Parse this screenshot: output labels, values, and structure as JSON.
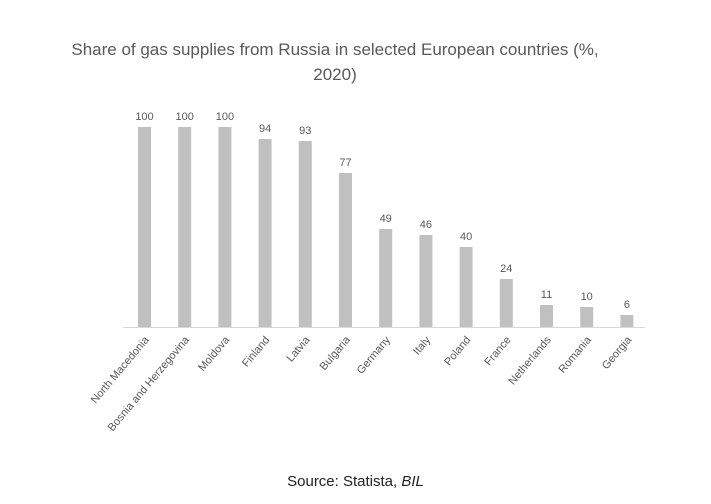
{
  "chart_data": {
    "type": "bar",
    "title": "Share of gas supplies from Russia in selected European countries (%, 2020)",
    "categories": [
      "North Macedonia",
      "Bosnia and Herzegovina",
      "Moldova",
      "Finland",
      "Latvia",
      "Bulgaria",
      "Germany",
      "Italy",
      "Poland",
      "France",
      "Netherlands",
      "Romania",
      "Georgia"
    ],
    "values": [
      100,
      100,
      100,
      94,
      93,
      77,
      49,
      46,
      40,
      24,
      11,
      10,
      6
    ],
    "data_labels": [
      "100",
      "100",
      "100",
      "94",
      "93",
      "77",
      "49",
      "46",
      "40",
      "24",
      "11",
      "10",
      "6"
    ],
    "xlabel": "",
    "ylabel": "",
    "ylim": [
      0,
      100
    ],
    "grid": false,
    "legend": "none",
    "bar_color": "#c0c0c0",
    "axis_color": "#d9d9d9",
    "label_color": "#595959"
  },
  "source": {
    "prefix": "Source: Statista, ",
    "italic": "BIL"
  }
}
